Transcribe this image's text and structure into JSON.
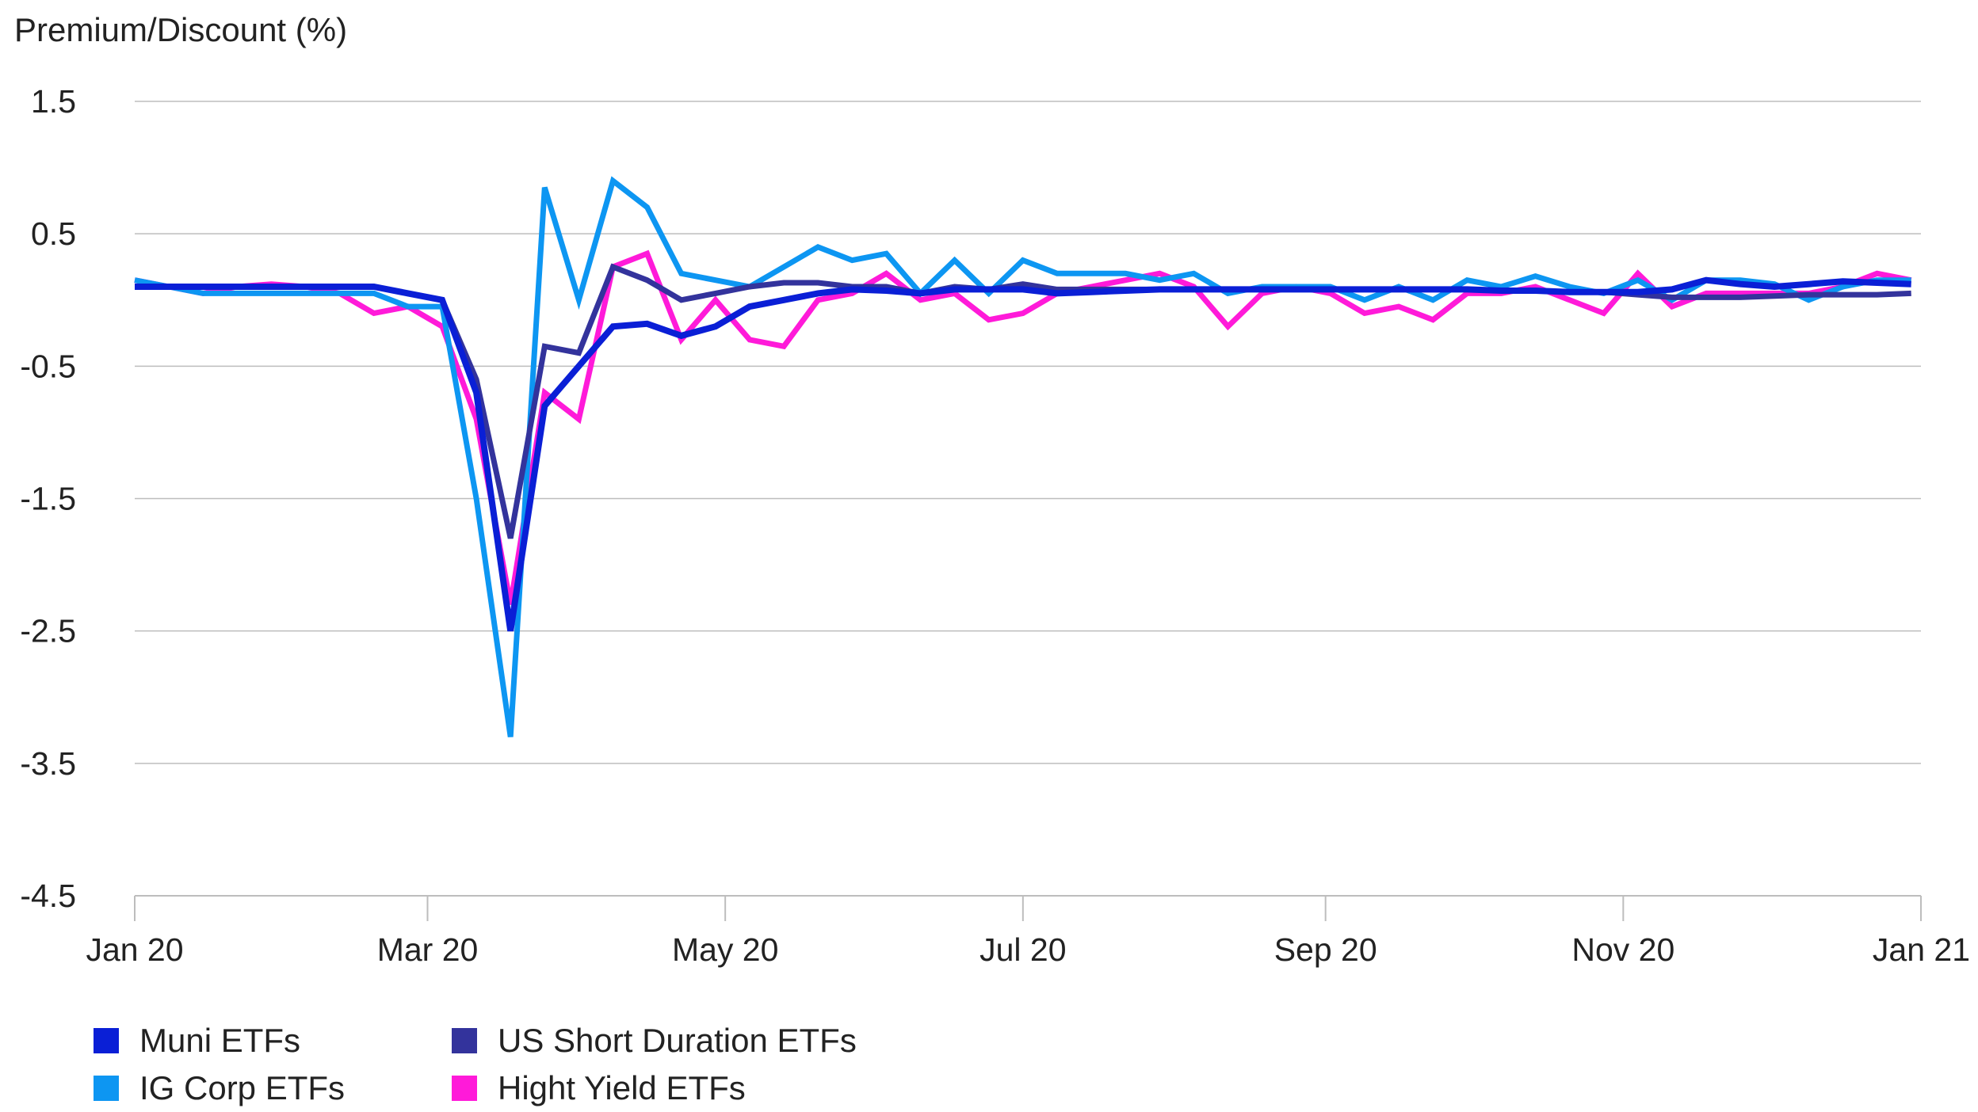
{
  "chart_data": {
    "type": "line",
    "ylabel": "Premium/Discount (%)",
    "ylim": [
      -4.5,
      1.5
    ],
    "yticks": [
      1.5,
      0.5,
      -0.5,
      -1.5,
      -2.5,
      -3.5,
      -4.5
    ],
    "ytick_labels": [
      "1.5",
      "0.5",
      "-0.5",
      "-1.5",
      "-2.5",
      "-3.5",
      "-4.5"
    ],
    "grid": "horizontal",
    "x_start": "2020-01-01",
    "x_end": "2021-01-01",
    "xticks": [
      "2020-01-01",
      "2020-03-01",
      "2020-05-01",
      "2020-07-01",
      "2020-09-01",
      "2020-11-01",
      "2021-01-01"
    ],
    "xtick_labels": [
      "Jan 20",
      "Mar 20",
      "May 20",
      "Jul 20",
      "Sep 20",
      "Nov 20",
      "Jan 21"
    ],
    "x": [
      "2020-01-01",
      "2020-01-08",
      "2020-01-15",
      "2020-01-22",
      "2020-01-29",
      "2020-02-05",
      "2020-02-12",
      "2020-02-19",
      "2020-02-26",
      "2020-03-04",
      "2020-03-11",
      "2020-03-18",
      "2020-03-25",
      "2020-04-01",
      "2020-04-08",
      "2020-04-15",
      "2020-04-22",
      "2020-04-29",
      "2020-05-06",
      "2020-05-13",
      "2020-05-20",
      "2020-05-27",
      "2020-06-03",
      "2020-06-10",
      "2020-06-17",
      "2020-06-24",
      "2020-07-01",
      "2020-07-08",
      "2020-07-15",
      "2020-07-22",
      "2020-07-29",
      "2020-08-05",
      "2020-08-12",
      "2020-08-19",
      "2020-08-26",
      "2020-09-02",
      "2020-09-09",
      "2020-09-16",
      "2020-09-23",
      "2020-09-30",
      "2020-10-07",
      "2020-10-14",
      "2020-10-21",
      "2020-10-28",
      "2020-11-04",
      "2020-11-11",
      "2020-11-18",
      "2020-11-25",
      "2020-12-02",
      "2020-12-09",
      "2020-12-16",
      "2020-12-23",
      "2020-12-30"
    ],
    "legend_position": "bottom-left",
    "series": [
      {
        "name": "Muni ETFs",
        "color": "#0a1fd6",
        "values": [
          0.1,
          0.1,
          0.1,
          0.1,
          0.1,
          0.1,
          0.1,
          0.1,
          0.05,
          0.0,
          -0.7,
          -2.5,
          -0.8,
          -0.5,
          -0.2,
          -0.18,
          -0.27,
          -0.2,
          -0.05,
          0.0,
          0.05,
          0.08,
          0.07,
          0.05,
          0.08,
          0.08,
          0.08,
          0.05,
          0.06,
          0.07,
          0.08,
          0.08,
          0.08,
          0.08,
          0.08,
          0.08,
          0.08,
          0.08,
          0.08,
          0.08,
          0.07,
          0.07,
          0.06,
          0.06,
          0.06,
          0.08,
          0.15,
          0.12,
          0.1,
          0.12,
          0.14,
          0.13,
          0.12
        ]
      },
      {
        "name": "IG Corp ETFs",
        "color": "#0d96f2",
        "values": [
          0.15,
          0.1,
          0.05,
          0.05,
          0.05,
          0.05,
          0.05,
          0.05,
          -0.05,
          -0.05,
          -1.5,
          -3.3,
          0.85,
          0.0,
          0.9,
          0.7,
          0.2,
          0.15,
          0.1,
          0.25,
          0.4,
          0.3,
          0.35,
          0.05,
          0.3,
          0.05,
          0.3,
          0.2,
          0.2,
          0.2,
          0.15,
          0.2,
          0.05,
          0.1,
          0.1,
          0.1,
          0.0,
          0.1,
          0.0,
          0.15,
          0.1,
          0.18,
          0.1,
          0.05,
          0.15,
          0.0,
          0.15,
          0.15,
          0.12,
          0.0,
          0.1,
          0.15,
          0.15
        ]
      },
      {
        "name": "US Short Duration ETFs",
        "color": "#33339c",
        "values": [
          0.1,
          0.1,
          0.1,
          0.1,
          0.1,
          0.1,
          0.1,
          0.1,
          0.05,
          0.0,
          -0.6,
          -1.8,
          -0.35,
          -0.4,
          0.25,
          0.15,
          0.0,
          0.05,
          0.1,
          0.13,
          0.13,
          0.1,
          0.1,
          0.05,
          0.1,
          0.08,
          0.12,
          0.08,
          0.08,
          0.08,
          0.08,
          0.08,
          0.08,
          0.08,
          0.08,
          0.08,
          0.08,
          0.08,
          0.08,
          0.08,
          0.07,
          0.07,
          0.06,
          0.06,
          0.04,
          0.02,
          0.02,
          0.02,
          0.03,
          0.04,
          0.04,
          0.04,
          0.05
        ]
      },
      {
        "name": "Hight Yield ETFs",
        "color": "#ff1ad9",
        "values": [
          0.15,
          0.1,
          0.05,
          0.1,
          0.12,
          0.1,
          0.05,
          -0.1,
          -0.05,
          -0.2,
          -0.9,
          -2.3,
          -0.7,
          -0.9,
          0.25,
          0.35,
          -0.3,
          0.0,
          -0.3,
          -0.35,
          0.0,
          0.05,
          0.2,
          0.0,
          0.05,
          -0.15,
          -0.1,
          0.05,
          0.1,
          0.15,
          0.2,
          0.1,
          -0.2,
          0.05,
          0.1,
          0.05,
          -0.1,
          -0.05,
          -0.15,
          0.05,
          0.05,
          0.1,
          0.0,
          -0.1,
          0.2,
          -0.05,
          0.05,
          0.05,
          0.05,
          0.05,
          0.1,
          0.2,
          0.15
        ]
      }
    ]
  }
}
